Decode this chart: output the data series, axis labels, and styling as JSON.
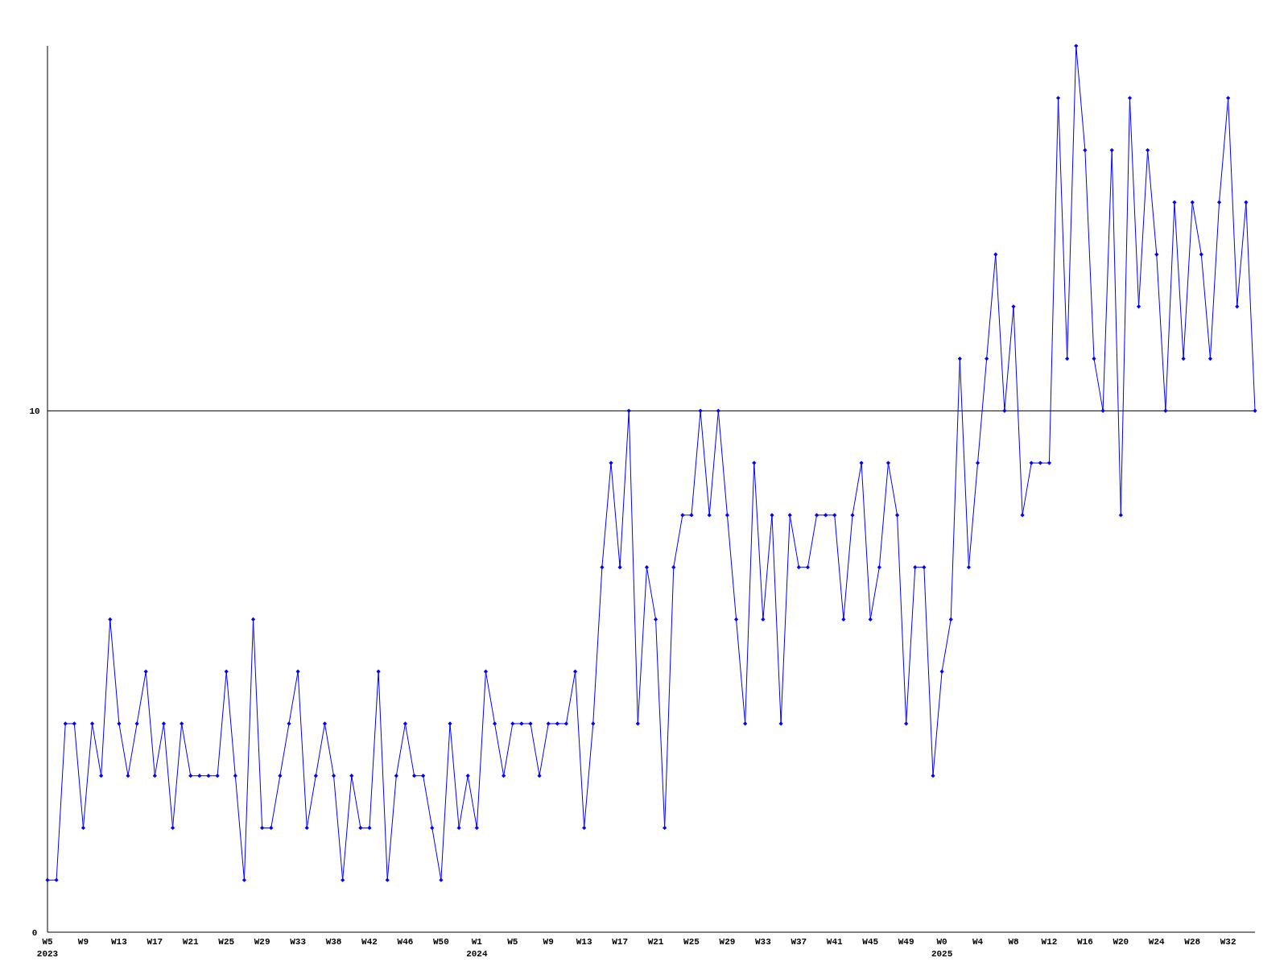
{
  "chart_data": {
    "type": "line",
    "categories": [
      "W5\n2023",
      null,
      null,
      null,
      "W9",
      null,
      null,
      null,
      "W13",
      null,
      null,
      null,
      "W17",
      null,
      null,
      null,
      "W21",
      null,
      null,
      null,
      "W25",
      null,
      null,
      null,
      "W29",
      null,
      null,
      null,
      "W33",
      null,
      null,
      null,
      "W38",
      null,
      null,
      null,
      "W42",
      null,
      null,
      null,
      "W46",
      null,
      null,
      null,
      "W50",
      null,
      null,
      null,
      "W1\n2024",
      null,
      null,
      null,
      "W5",
      null,
      null,
      null,
      "W9",
      null,
      null,
      null,
      "W13",
      null,
      null,
      null,
      "W17",
      null,
      null,
      null,
      "W21",
      null,
      null,
      null,
      "W25",
      null,
      null,
      null,
      "W29",
      null,
      null,
      null,
      "W33",
      null,
      null,
      null,
      "W37",
      null,
      null,
      null,
      "W41",
      null,
      null,
      null,
      "W45",
      null,
      null,
      null,
      "W49",
      null,
      null,
      null,
      "W0\n2025",
      null,
      null,
      null,
      "W4",
      null,
      null,
      null,
      "W8",
      null,
      null,
      null,
      "W12",
      null,
      null,
      null,
      "W16",
      null,
      null,
      null,
      "W20",
      null,
      null,
      null,
      "W24",
      null,
      null,
      null,
      "W28",
      null,
      null,
      null,
      "W32",
      null,
      null,
      null
    ],
    "series": [
      {
        "color": "#0000ff",
        "values": [
          1,
          1,
          4,
          4,
          2,
          4,
          3,
          6,
          4,
          3,
          4,
          5,
          3,
          4,
          2,
          4,
          3,
          3,
          3,
          3,
          5,
          3,
          1,
          6,
          2,
          2,
          3,
          4,
          5,
          2,
          3,
          4,
          3,
          1,
          3,
          2,
          2,
          5,
          1,
          3,
          4,
          3,
          3,
          2,
          1,
          4,
          2,
          3,
          2,
          5,
          4,
          3,
          4,
          4,
          4,
          3,
          4,
          4,
          4,
          5,
          2,
          4,
          7,
          9,
          7,
          10,
          4,
          7,
          6,
          2,
          7,
          8,
          8,
          10,
          8,
          10,
          8,
          6,
          4,
          9,
          6,
          8,
          4,
          8,
          7,
          7,
          8,
          8,
          8,
          6,
          8,
          9,
          6,
          7,
          9,
          8,
          4,
          7,
          7,
          3,
          5,
          6,
          11,
          7,
          9,
          11,
          13,
          10,
          12,
          8,
          9,
          9,
          9,
          16,
          11,
          17,
          15,
          11,
          10,
          15,
          8,
          16,
          12,
          15,
          13,
          10,
          14,
          11,
          14,
          13,
          11,
          14,
          16,
          12,
          14,
          10
        ]
      }
    ],
    "ylim": [
      0,
      17
    ],
    "yticks": [
      0,
      10
    ],
    "ref_lines": [
      {
        "axis": "y",
        "value": 10,
        "color": "#000000"
      }
    ],
    "marker": "diamond",
    "grid": false
  }
}
